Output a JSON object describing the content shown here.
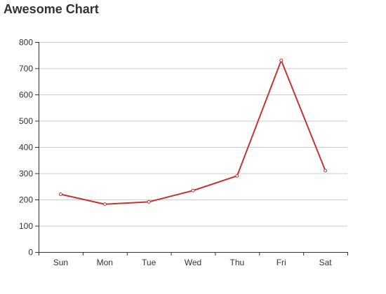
{
  "chart_data": {
    "type": "line",
    "title": "Awesome Chart",
    "xlabel": "",
    "ylabel": "",
    "categories": [
      "Sun",
      "Mon",
      "Tue",
      "Wed",
      "Thu",
      "Fri",
      "Sat"
    ],
    "series": [
      {
        "values": [
          220,
          182,
          191,
          234,
          290,
          730,
          310
        ]
      }
    ],
    "ylim": [
      0,
      800
    ],
    "yticks": [
      "0",
      "100",
      "200",
      "300",
      "400",
      "500",
      "600",
      "700",
      "800"
    ],
    "grid": true,
    "legend": "none",
    "colors": {
      "line": "#c23531",
      "grid": "#cccccc",
      "axis": "#333333"
    }
  }
}
